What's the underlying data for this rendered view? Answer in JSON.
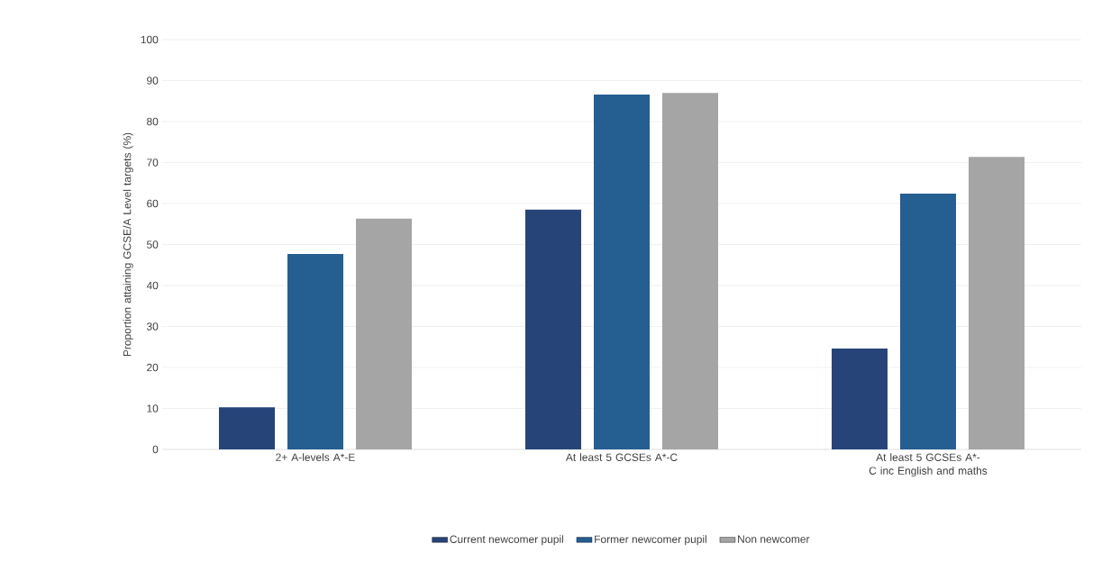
{
  "chart_data": {
    "type": "bar",
    "ylabel": "Proportion attaining GCSE/A Level targets (%)",
    "categories": [
      "2+ A-levels A*-E",
      "At least 5 GCSEs A*-C",
      "At least 5 GCSEs A*-C  inc English and maths"
    ],
    "series": [
      {
        "name": "Current newcomer pupil",
        "color": "#264478",
        "values": [
          10.3,
          58.5,
          24.6
        ]
      },
      {
        "name": "Former newcomer pupil",
        "color": "#255e91",
        "values": [
          47.7,
          86.6,
          62.4
        ]
      },
      {
        "name": "Non newcomer",
        "color": "#a5a5a5",
        "values": [
          56.3,
          87,
          71.4
        ]
      }
    ],
    "ylim": [
      0,
      100
    ],
    "yticks": [
      0,
      10,
      20,
      30,
      40,
      50,
      60,
      70,
      80,
      90,
      100
    ],
    "grid": "y",
    "legend": "bottom"
  }
}
